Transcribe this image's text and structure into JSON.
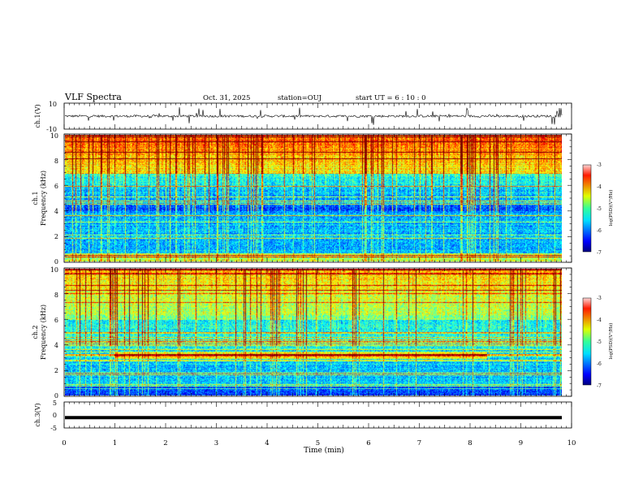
{
  "header": {
    "title": "VLF Spectra",
    "date": "Oct. 31, 2025",
    "station": "station=OUJ",
    "start": "start  UT  =   6  : 10 : 0"
  },
  "chart_data": [
    {
      "type": "line",
      "id": "ch1-waveform",
      "ylabel": "ch.1(V)",
      "ylim": [
        -10,
        10
      ],
      "yticks": [
        "10",
        "-10"
      ],
      "xlim": [
        0,
        10
      ],
      "description_series": "waveform centered near 0 V with short spikes"
    },
    {
      "type": "heatmap",
      "id": "ch1-spectrogram",
      "ylabel_top": "ch.1",
      "ylabel": "Frequency  (kHz)",
      "ylim": [
        0,
        10
      ],
      "yticks": [
        "0",
        "2",
        "4",
        "6",
        "8",
        "10"
      ],
      "xlim": [
        0,
        9.8
      ],
      "colorbar": {
        "label": "log(PSD)(V²/Hz)",
        "range": [
          -7,
          -3
        ],
        "ticks": [
          "-3",
          "-4",
          "-5",
          "-6",
          "-7"
        ]
      }
    },
    {
      "type": "heatmap",
      "id": "ch2-spectrogram",
      "ylabel_top": "ch.2",
      "ylabel": "Frequency  (kHz)",
      "ylim": [
        0,
        10
      ],
      "yticks": [
        "0",
        "2",
        "4",
        "6",
        "8",
        "10"
      ],
      "xlim": [
        0,
        9.8
      ],
      "colorbar": {
        "label": "log(PSD)(V²/Hz)",
        "range": [
          -7,
          -3
        ],
        "ticks": [
          "-3",
          "-4",
          "-5",
          "-6",
          "-7"
        ]
      }
    },
    {
      "type": "line",
      "id": "ch3-waveform",
      "ylabel": "ch.3(V)",
      "ylim": [
        -5,
        5
      ],
      "yticks": [
        "5",
        "0",
        "-5"
      ],
      "constant_value": -1.0
    }
  ],
  "xaxis": {
    "label": "Time  (min)",
    "ticks": [
      "0",
      "1",
      "2",
      "3",
      "4",
      "5",
      "6",
      "7",
      "8",
      "9",
      "10"
    ],
    "range": [
      0,
      10
    ]
  },
  "colors": {
    "ink": "#000000",
    "bg": "#ffffff"
  }
}
